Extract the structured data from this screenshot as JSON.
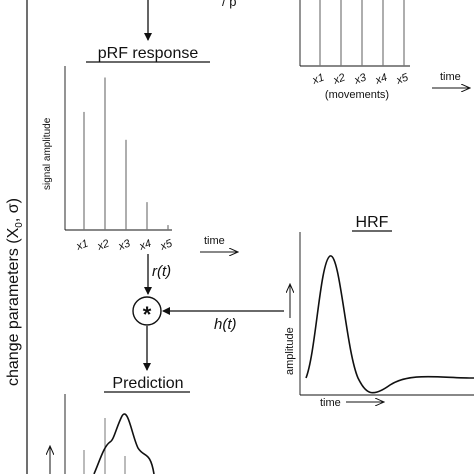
{
  "side_label": {
    "main": "change parameters (X",
    "sub0": "0",
    "mid": ", σ",
    "sub1": "",
    "end": ")"
  },
  "top_partial_text": "/ p",
  "prf": {
    "title": "pRF response",
    "ylabel": "signal amplitude",
    "x_labels": [
      "x1",
      "x2",
      "x3",
      "x4",
      "x5"
    ],
    "time_label": "time",
    "values": [
      0.72,
      0.93,
      0.55,
      0.17,
      0.03
    ]
  },
  "movements": {
    "x_labels": [
      "x1",
      "x2",
      "x3",
      "x4",
      "x5"
    ],
    "caption": "(movements)",
    "time_label": "time",
    "bar_count": 5
  },
  "rt_label": "r(t)",
  "conv_symbol": "*",
  "ht_label": "h(t)",
  "hrf": {
    "title": "HRF",
    "ylabel": "amplitude",
    "xlabel": "time"
  },
  "prediction": {
    "title": "Prediction"
  }
}
